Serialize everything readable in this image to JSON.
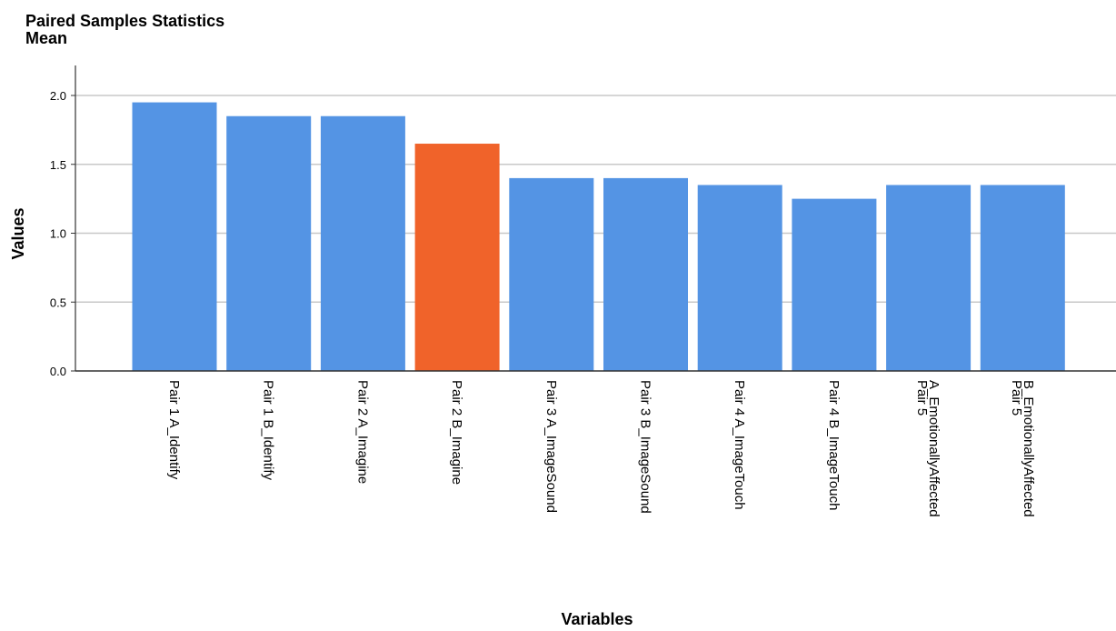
{
  "chart_data": {
    "type": "bar",
    "title": "Paired Samples Statistics",
    "subtitle": "Mean",
    "xlabel": "Variables",
    "ylabel": "Values",
    "ylim": [
      0,
      2.0
    ],
    "yticks": [
      "0.0",
      "0.5",
      "1.0",
      "1.5",
      "2.0"
    ],
    "grid": true,
    "categories": [
      [
        "Pair 1 A_Identify"
      ],
      [
        "Pair 1 B_Identify"
      ],
      [
        "Pair 2 A_Imagine"
      ],
      [
        "Pair 2 B_Imagine"
      ],
      [
        "Pair 3 A_ImageSound"
      ],
      [
        "Pair 3 B_ImageSound"
      ],
      [
        "Pair 4 A_ImageTouch"
      ],
      [
        "Pair 4 B_ImageTouch"
      ],
      [
        "Pair 5",
        "A_EmotionallyAffected"
      ],
      [
        "Pair 5",
        "B_EmotionallyAffected"
      ]
    ],
    "values": [
      1.95,
      1.85,
      1.85,
      1.65,
      1.4,
      1.4,
      1.35,
      1.25,
      1.35,
      1.35
    ],
    "highlight_index": 3,
    "colors": {
      "bar": "#5494E4",
      "highlight": "#F0632A",
      "grid": "#C8C8C8",
      "axis": "#333333"
    }
  }
}
